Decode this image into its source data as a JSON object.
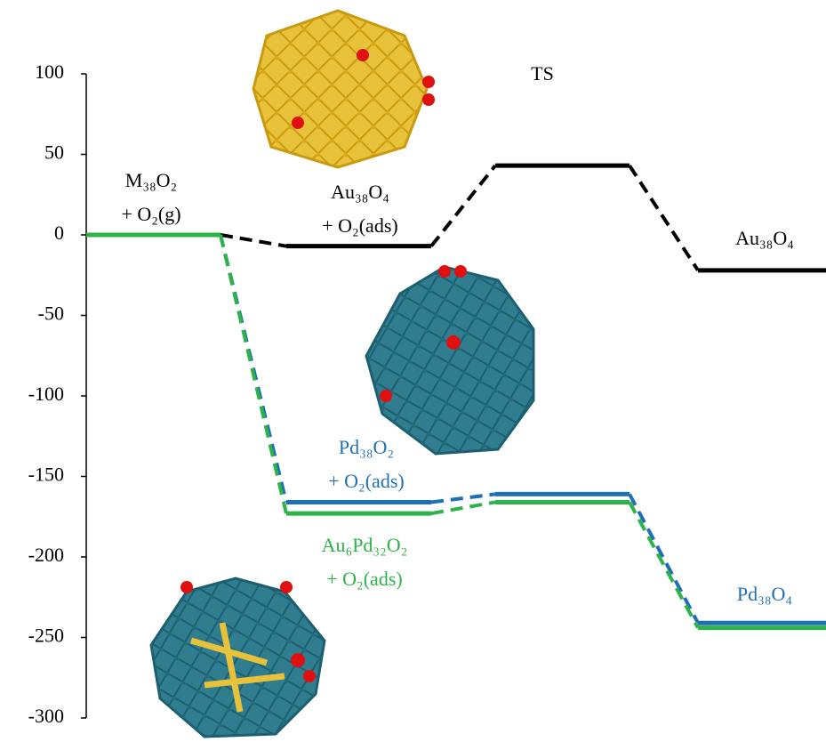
{
  "chart_data": {
    "type": "energy-profile",
    "ylim": [
      -300,
      100
    ],
    "yticks": [
      100,
      50,
      0,
      -50,
      -100,
      -150,
      -200,
      -250,
      -300
    ],
    "series": [
      {
        "color": "#000000",
        "values": [
          0,
          -7,
          43,
          -22
        ]
      },
      {
        "color": "#1f6fb4",
        "values": [
          0,
          -166,
          -161,
          -241
        ]
      },
      {
        "color": "#2db34a",
        "values": [
          0,
          -173,
          -166,
          -244
        ]
      }
    ],
    "annotations": [
      {
        "lines": [
          "TS"
        ],
        "color": "#000000"
      },
      {
        "lines": [
          "M₃₈O₂",
          "+ O₂(g)"
        ],
        "color": "#000000"
      },
      {
        "lines": [
          "Au₃₈O₄",
          "+ O₂(ads)"
        ],
        "color": "#000000"
      },
      {
        "lines": [
          "Au₃₈O₄"
        ],
        "color": "#000000"
      },
      {
        "lines": [
          "Pd₃₈O₂",
          "+ O₂(ads)"
        ],
        "color": "#1f6fb4"
      },
      {
        "lines": [
          "Au₆Pd₃₂O₂",
          "+ O₂(ads)"
        ],
        "color": "#2db34a"
      },
      {
        "lines": [
          "Pd₃₈O₄"
        ],
        "color": "#1f6fb4"
      }
    ]
  }
}
